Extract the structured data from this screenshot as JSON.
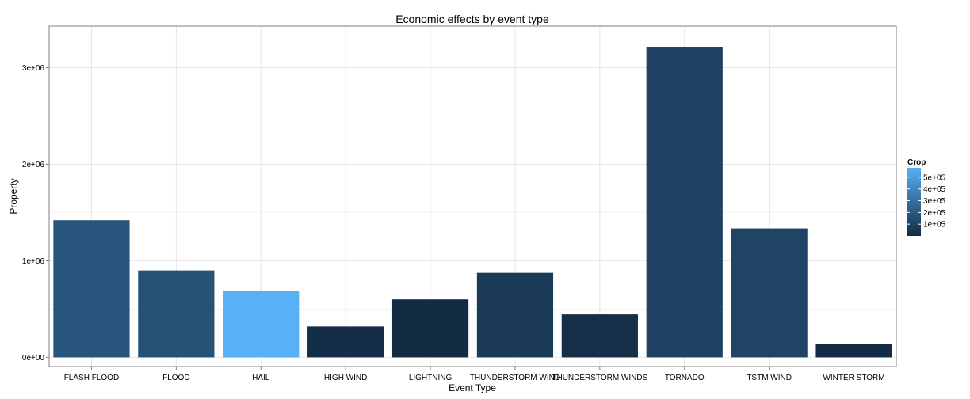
{
  "chart_data": {
    "type": "bar",
    "title": "Economic effects by event type",
    "xlabel": "Event Type",
    "ylabel": "Property",
    "categories": [
      "FLASH FLOOD",
      "FLOOD",
      "HAIL",
      "HIGH WIND",
      "LIGHTNING",
      "THUNDERSTORM WIND",
      "THUNDERSTORM WINDS",
      "TORNADO",
      "TSTM WIND",
      "WINTER STORM"
    ],
    "values": [
      1420000,
      900000,
      690000,
      320000,
      600000,
      875000,
      445000,
      3215000,
      1335000,
      135000
    ],
    "fill_values": [
      180000,
      168000,
      580000,
      12000,
      3000,
      66000,
      18000,
      101000,
      110000,
      2000
    ],
    "ylim": [
      -95000,
      3430000
    ],
    "yticks": [
      0,
      1000000,
      2000000,
      3000000
    ],
    "ytick_labels": [
      "0e+00",
      "1e+06",
      "2e+06",
      "3e+06"
    ],
    "grid": true,
    "legend": {
      "title": "Crop",
      "position": "right",
      "range": [
        0,
        580000
      ],
      "ticks": [
        100000,
        200000,
        300000,
        400000,
        500000
      ],
      "tick_labels": [
        "1e+05",
        "2e+05",
        "3e+05",
        "4e+05",
        "5e+05"
      ],
      "color_low": "#132b43",
      "color_high": "#56b1f7"
    },
    "colors": {
      "grid": "#e6e6e6",
      "grid_minor": "#f2f2f2",
      "panel_border": "#7f7f7f"
    }
  }
}
